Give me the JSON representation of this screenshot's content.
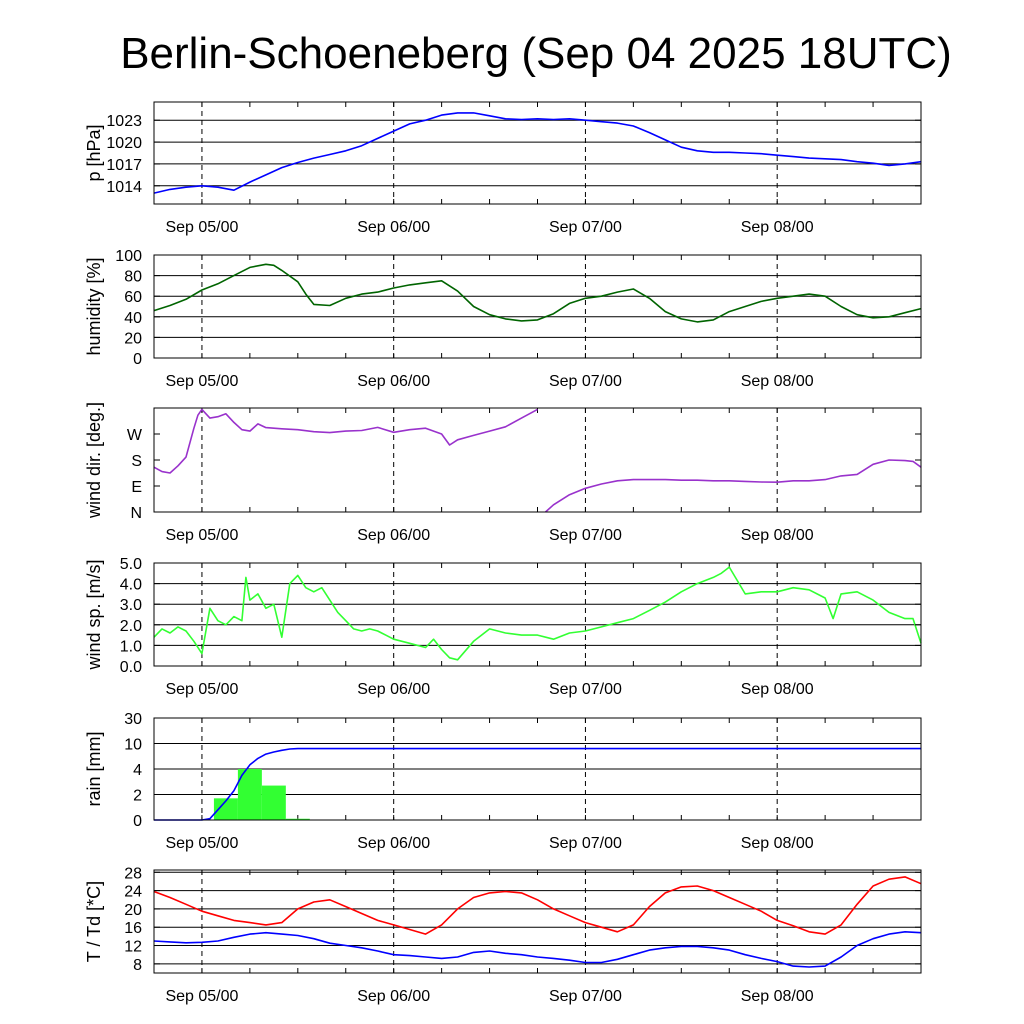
{
  "title": "Berlin-Schoeneberg (Sep 04 2025 18UTC)",
  "x_axis": {
    "unit": "hours since Sep 04 18UTC",
    "range": [
      0,
      96
    ],
    "tick_labels": [
      "Sep 05/00",
      "Sep 06/00",
      "Sep 07/00",
      "Sep 08/00"
    ],
    "tick_positions": [
      6,
      30,
      54,
      78
    ]
  },
  "chart_data": [
    {
      "type": "line",
      "ylabel": "p [hPa]",
      "ylim": [
        1011.5,
        1025.5
      ],
      "yticks": [
        1014,
        1017,
        1020,
        1023
      ],
      "ytick_labels": [
        "1014",
        "1017",
        "1020",
        "1023"
      ],
      "grid_values": [
        1014,
        1017,
        1020,
        1023
      ],
      "series": [
        {
          "color": "#0000ff",
          "x": [
            0,
            2,
            4,
            6,
            8,
            10,
            12,
            14,
            16,
            18,
            20,
            22,
            24,
            26,
            28,
            30,
            32,
            34,
            36,
            38,
            40,
            42,
            44,
            46,
            48,
            50,
            52,
            54,
            56,
            58,
            60,
            62,
            64,
            66,
            68,
            70,
            72,
            74,
            76,
            78,
            80,
            82,
            84,
            86,
            88,
            90,
            92,
            94,
            96
          ],
          "y": [
            1013.0,
            1013.5,
            1013.8,
            1014.0,
            1013.8,
            1013.4,
            1014.5,
            1015.5,
            1016.5,
            1017.2,
            1017.8,
            1018.3,
            1018.8,
            1019.5,
            1020.5,
            1021.5,
            1022.5,
            1023.0,
            1023.7,
            1024.0,
            1024.0,
            1023.6,
            1023.2,
            1023.1,
            1023.2,
            1023.1,
            1023.2,
            1023.0,
            1022.8,
            1022.6,
            1022.2,
            1021.3,
            1020.3,
            1019.3,
            1018.8,
            1018.6,
            1018.6,
            1018.5,
            1018.4,
            1018.2,
            1018.0,
            1017.8,
            1017.7,
            1017.6,
            1017.3,
            1017.1,
            1016.8,
            1017.0,
            1017.3
          ]
        }
      ]
    },
    {
      "type": "line",
      "ylabel": "humidity [%]",
      "ylim": [
        0,
        100
      ],
      "yticks": [
        0,
        20,
        40,
        60,
        80,
        100
      ],
      "ytick_labels": [
        "0",
        "20",
        "40",
        "60",
        "80",
        "100"
      ],
      "grid_values": [
        20,
        40,
        60,
        80
      ],
      "series": [
        {
          "color": "#006400",
          "x": [
            0,
            2,
            4,
            6,
            8,
            10,
            12,
            14,
            15,
            16,
            18,
            19,
            20,
            22,
            24,
            26,
            28,
            30,
            32,
            34,
            36,
            38,
            40,
            42,
            44,
            46,
            48,
            50,
            52,
            54,
            56,
            58,
            60,
            62,
            64,
            66,
            68,
            70,
            72,
            74,
            76,
            78,
            80,
            82,
            84,
            86,
            88,
            90,
            92,
            94,
            96
          ],
          "y": [
            46,
            51,
            57,
            66,
            72,
            80,
            88,
            91,
            90,
            85,
            74,
            62,
            52,
            51,
            58,
            62,
            64,
            68,
            71,
            73,
            75,
            65,
            50,
            42,
            38,
            36,
            37,
            43,
            53,
            58,
            60,
            64,
            67,
            58,
            45,
            38,
            35,
            37,
            45,
            50,
            55,
            58,
            60,
            62,
            60,
            50,
            42,
            39,
            40,
            44,
            48
          ]
        }
      ]
    },
    {
      "type": "line",
      "ylabel": "wind dir. [deg.]",
      "ylim": [
        0,
        360
      ],
      "yticks": [
        0,
        90,
        180,
        270
      ],
      "ytick_labels": [
        "N",
        "E",
        "S",
        "W"
      ],
      "grid_values": [],
      "series": [
        {
          "color": "#9932cc",
          "x": [
            0,
            1,
            2,
            3,
            4,
            5,
            5.5,
            6,
            7,
            8,
            9,
            10,
            11,
            12,
            13,
            14,
            16,
            18,
            20,
            22,
            24,
            26,
            28,
            30,
            32,
            34,
            36,
            37,
            38,
            40,
            42,
            44,
            46,
            48
          ],
          "y": [
            155,
            140,
            135,
            160,
            190,
            290,
            335,
            355,
            325,
            330,
            340,
            310,
            285,
            280,
            305,
            292,
            288,
            285,
            278,
            275,
            280,
            282,
            293,
            276,
            285,
            290,
            270,
            232,
            250,
            265,
            280,
            295,
            325,
            355
          ]
        },
        {
          "color": "#9932cc",
          "x": [
            49,
            50,
            52,
            54,
            56,
            58,
            60,
            62,
            64,
            66,
            68,
            70,
            72,
            74,
            76,
            78,
            80,
            82,
            84,
            86,
            88,
            90,
            92,
            94,
            95,
            96
          ],
          "y": [
            0,
            25,
            60,
            82,
            97,
            108,
            112,
            112,
            112,
            110,
            110,
            108,
            108,
            106,
            104,
            103,
            108,
            108,
            112,
            125,
            130,
            165,
            180,
            178,
            175,
            155
          ]
        }
      ]
    },
    {
      "type": "line",
      "ylabel": "wind sp. [m/s]",
      "ylim": [
        0,
        5
      ],
      "yticks": [
        0,
        1,
        2,
        3,
        4,
        5
      ],
      "ytick_labels": [
        "0.0",
        "1.0",
        "2.0",
        "3.0",
        "4.0",
        "5.0"
      ],
      "grid_values": [
        1,
        2,
        3,
        4
      ],
      "series": [
        {
          "color": "#32ff32",
          "x": [
            0,
            1,
            2,
            3,
            4,
            5,
            6,
            7,
            8,
            9,
            10,
            11,
            11.5,
            12,
            13,
            14,
            15,
            16,
            17,
            18,
            19,
            20,
            21,
            22,
            23,
            24,
            25,
            26,
            27,
            28,
            29,
            30,
            32,
            34,
            35,
            36,
            37,
            38,
            40,
            42,
            44,
            46,
            48,
            50,
            52,
            54,
            56,
            58,
            60,
            62,
            64,
            66,
            68,
            70,
            71,
            72,
            74,
            76,
            78,
            80,
            82,
            84,
            85,
            86,
            88,
            90,
            92,
            94,
            95,
            96
          ],
          "y": [
            1.4,
            1.8,
            1.6,
            1.9,
            1.7,
            1.2,
            0.6,
            2.8,
            2.2,
            2.0,
            2.4,
            2.2,
            4.3,
            3.2,
            3.5,
            2.8,
            3.0,
            1.4,
            4.0,
            4.4,
            3.8,
            3.6,
            3.8,
            3.2,
            2.6,
            2.2,
            1.8,
            1.7,
            1.8,
            1.7,
            1.5,
            1.3,
            1.1,
            0.9,
            1.3,
            0.8,
            0.4,
            0.3,
            1.2,
            1.8,
            1.6,
            1.5,
            1.5,
            1.3,
            1.6,
            1.7,
            1.9,
            2.1,
            2.3,
            2.7,
            3.1,
            3.6,
            4.0,
            4.3,
            4.5,
            4.8,
            3.5,
            3.6,
            3.6,
            3.8,
            3.7,
            3.3,
            2.3,
            3.5,
            3.6,
            3.2,
            2.6,
            2.3,
            2.3,
            1.1
          ]
        }
      ]
    },
    {
      "type": "bar_line",
      "ylabel": "rain [mm]",
      "yticks": [
        0,
        2,
        4,
        10,
        30
      ],
      "ytick_labels": [
        "0",
        "2",
        "4",
        "10",
        "30"
      ],
      "grid_values": [
        2,
        4,
        10,
        30
      ],
      "bars": {
        "color": "#32ff32",
        "intervals": [
          [
            7.5,
            10.5
          ],
          [
            10.5,
            13.5
          ],
          [
            13.5,
            16.5
          ],
          [
            16.5,
            19.5
          ]
        ],
        "values": [
          1.7,
          4.0,
          2.7,
          0.1
        ]
      },
      "cumulative": {
        "color": "#0000ff",
        "x": [
          0,
          3,
          6,
          7,
          8,
          9,
          10,
          11,
          12,
          13,
          14,
          15,
          16,
          17,
          18,
          96
        ],
        "y": [
          0,
          0,
          0,
          0.1,
          0.8,
          1.5,
          2.3,
          3.5,
          5.0,
          6.5,
          7.5,
          8.0,
          8.4,
          8.7,
          8.8,
          8.8
        ]
      }
    },
    {
      "type": "line",
      "ylabel": "T / Td [*C]",
      "ylim": [
        6,
        28.5
      ],
      "yticks": [
        8,
        12,
        16,
        20,
        24,
        28
      ],
      "ytick_labels": [
        "8",
        "12",
        "16",
        "20",
        "24",
        "28"
      ],
      "grid_values": [
        8,
        12,
        16,
        20,
        24,
        28
      ],
      "series": [
        {
          "color": "#ff0000",
          "x": [
            0,
            2,
            4,
            6,
            8,
            10,
            12,
            14,
            16,
            18,
            20,
            22,
            24,
            26,
            28,
            30,
            32,
            34,
            36,
            38,
            40,
            42,
            44,
            46,
            48,
            50,
            52,
            54,
            56,
            58,
            60,
            62,
            64,
            66,
            68,
            70,
            72,
            74,
            76,
            78,
            80,
            82,
            84,
            86,
            88,
            90,
            92,
            94,
            96
          ],
          "y": [
            23.8,
            22.5,
            21.0,
            19.5,
            18.5,
            17.5,
            17.0,
            16.5,
            17.0,
            20.0,
            21.5,
            22.0,
            20.5,
            19.0,
            17.5,
            16.5,
            15.5,
            14.5,
            16.5,
            20.0,
            22.5,
            23.5,
            23.8,
            23.5,
            22.0,
            20.0,
            18.5,
            17.0,
            16.0,
            15.0,
            16.5,
            20.5,
            23.5,
            24.8,
            25.0,
            24.0,
            22.5,
            21.0,
            19.5,
            17.5,
            16.3,
            15.0,
            14.5,
            16.5,
            21.0,
            25.0,
            26.5,
            27.0,
            25.5
          ]
        },
        {
          "color": "#0000ff",
          "x": [
            0,
            2,
            4,
            6,
            8,
            10,
            12,
            14,
            16,
            18,
            20,
            22,
            24,
            26,
            28,
            30,
            32,
            34,
            36,
            38,
            40,
            42,
            44,
            46,
            48,
            50,
            52,
            54,
            56,
            58,
            60,
            62,
            64,
            66,
            68,
            70,
            72,
            74,
            76,
            78,
            80,
            82,
            84,
            86,
            88,
            90,
            92,
            94,
            96
          ],
          "y": [
            13.0,
            12.8,
            12.6,
            12.7,
            13.0,
            13.8,
            14.5,
            14.8,
            14.5,
            14.2,
            13.5,
            12.5,
            12.0,
            11.5,
            10.8,
            10.0,
            9.8,
            9.5,
            9.2,
            9.5,
            10.5,
            10.8,
            10.3,
            10.0,
            9.5,
            9.2,
            8.8,
            8.3,
            8.3,
            9.0,
            10.0,
            11.0,
            11.5,
            11.8,
            11.8,
            11.5,
            11.0,
            10.0,
            9.2,
            8.5,
            7.5,
            7.3,
            7.5,
            9.5,
            12.0,
            13.5,
            14.5,
            15.0,
            14.8
          ]
        }
      ]
    }
  ]
}
